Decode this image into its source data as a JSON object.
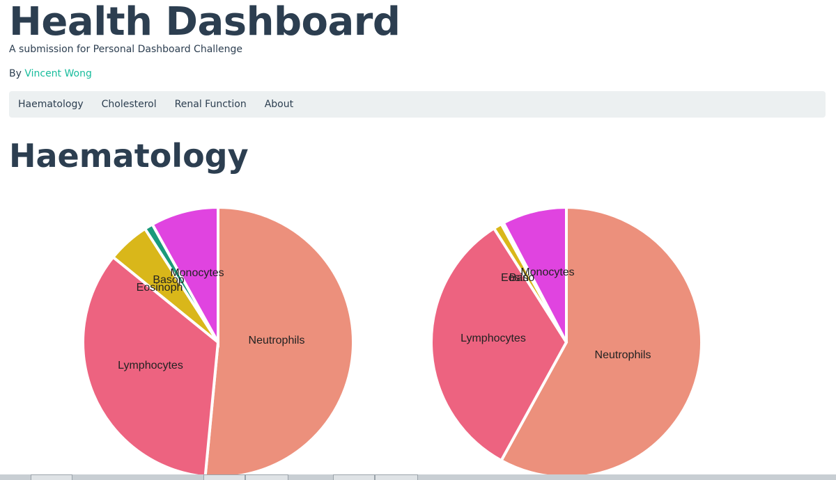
{
  "header": {
    "title": "Health Dashboard",
    "subtitle": "A submission for Personal Dashboard Challenge",
    "by_prefix": "By ",
    "author": "Vincent Wong"
  },
  "nav": {
    "items": [
      {
        "label": "Haematology"
      },
      {
        "label": "Cholesterol"
      },
      {
        "label": "Renal Function"
      },
      {
        "label": "About"
      }
    ]
  },
  "section": {
    "title": "Haematology"
  },
  "chart_data": [
    {
      "type": "pie",
      "title": "",
      "categories": [
        "Neutrophils",
        "Lymphocytes",
        "Eosinophils",
        "Basophils",
        "Monocytes"
      ],
      "labels_shown": [
        "Neutrophils",
        "Lymphocytes",
        "Eosinoph",
        "Basop",
        "Monocytes"
      ],
      "values": [
        51.0,
        34.0,
        5.0,
        1.0,
        8.0
      ],
      "colors": [
        "#ec907c",
        "#ed6380",
        "#d9b71a",
        "#1a9a7a",
        "#e044e0"
      ]
    },
    {
      "type": "pie",
      "title": "",
      "categories": [
        "Neutrophils",
        "Lymphocytes",
        "Eosinophils",
        "Basophils",
        "Monocytes"
      ],
      "labels_shown": [
        "Neutrophils",
        "Lymphocytes",
        "Eosin",
        "Baso",
        "Monocytes"
      ],
      "values": [
        58.0,
        33.0,
        1.0,
        0.3,
        7.7
      ],
      "colors": [
        "#ec907c",
        "#ed6380",
        "#d9b71a",
        "#1a9a7a",
        "#e044e0"
      ]
    }
  ]
}
